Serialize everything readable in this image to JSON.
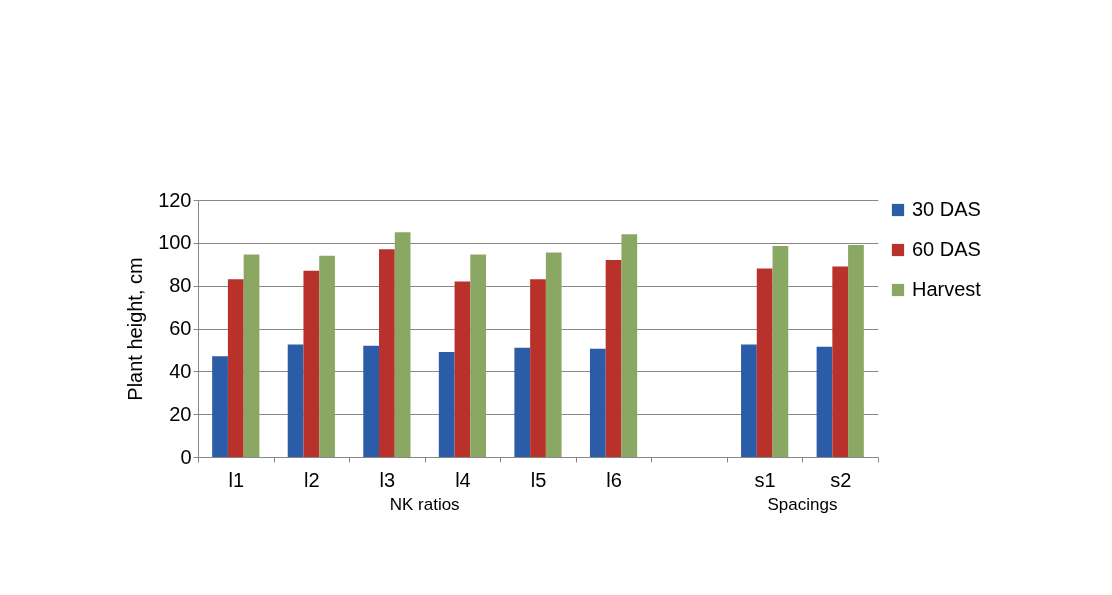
{
  "chart_data": {
    "type": "bar",
    "ylabel": "Plant height, cm",
    "categories": [
      "l1",
      "l2",
      "l3",
      "l4",
      "l5",
      "l6",
      null,
      "s1",
      "s2"
    ],
    "series": [
      {
        "name": "30 DAS",
        "color": "#2a5ca8",
        "values": [
          47,
          52.5,
          52,
          49,
          51,
          50.5,
          null,
          52.5,
          51.5
        ]
      },
      {
        "name": "60 DAS",
        "color": "#b8312b",
        "values": [
          83,
          87,
          97,
          82,
          83,
          92,
          null,
          88,
          89
        ]
      },
      {
        "name": "Harvest",
        "color": "#8aa863",
        "values": [
          94.5,
          94,
          105,
          94.5,
          95.5,
          104,
          null,
          98.5,
          99
        ]
      }
    ],
    "ylim": [
      0,
      120
    ],
    "yticks": [
      0,
      20,
      40,
      60,
      80,
      100,
      120
    ],
    "grid": "y",
    "legend": "right",
    "annotations": [
      "NK ratios",
      "Spacings"
    ]
  }
}
